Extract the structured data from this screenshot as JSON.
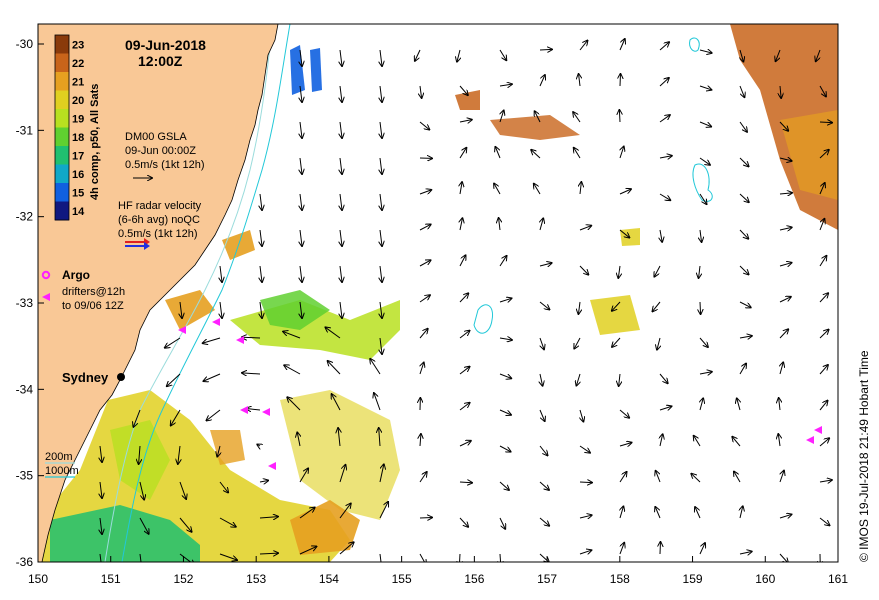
{
  "header": {
    "date": "09-Jun-2018",
    "time": "12:00Z"
  },
  "colorbar": {
    "title": "4h comp, p50, All Sats",
    "ticks": [
      "23",
      "22",
      "21",
      "20",
      "19",
      "18",
      "17",
      "16",
      "15",
      "14"
    ],
    "colors": [
      "#8a3a0a",
      "#c8641a",
      "#e6a020",
      "#e0d020",
      "#b8e020",
      "#60d030",
      "#20c070",
      "#10a8c8",
      "#1060e0",
      "#101880"
    ]
  },
  "gsla": {
    "line1": "DM00 GSLA",
    "line2": "09-Jun 00:00Z",
    "line3": "0.5m/s (1kt 12h)"
  },
  "hf_radar": {
    "line1": "HF radar velocity",
    "line2": "(6-6h avg) noQC",
    "line3": "0.5m/s (1kt 12h)"
  },
  "argo": {
    "label": "Argo",
    "drifters1": "drifters@12h",
    "drifters2": "to 09/06 12Z"
  },
  "city": {
    "label": "Sydney"
  },
  "bathy": {
    "label200": "200m",
    "label1000": "1000m"
  },
  "axes": {
    "x_ticks": [
      "150",
      "151",
      "152",
      "153",
      "154",
      "155",
      "156",
      "157",
      "158",
      "159",
      "160",
      "161"
    ],
    "y_ticks": [
      "-30",
      "-31",
      "-32",
      "-33",
      "-34",
      "-35",
      "-36"
    ]
  },
  "credit": "© IMOS 19-Jul-2018 21:49 Hobart Time",
  "colors": {
    "land": "#f9c896",
    "ocean": "#ffffff",
    "bathy200": "#9bdcdc",
    "bathy1000": "#22c8d8",
    "argo": "#ff20ff",
    "city": "#000000"
  }
}
